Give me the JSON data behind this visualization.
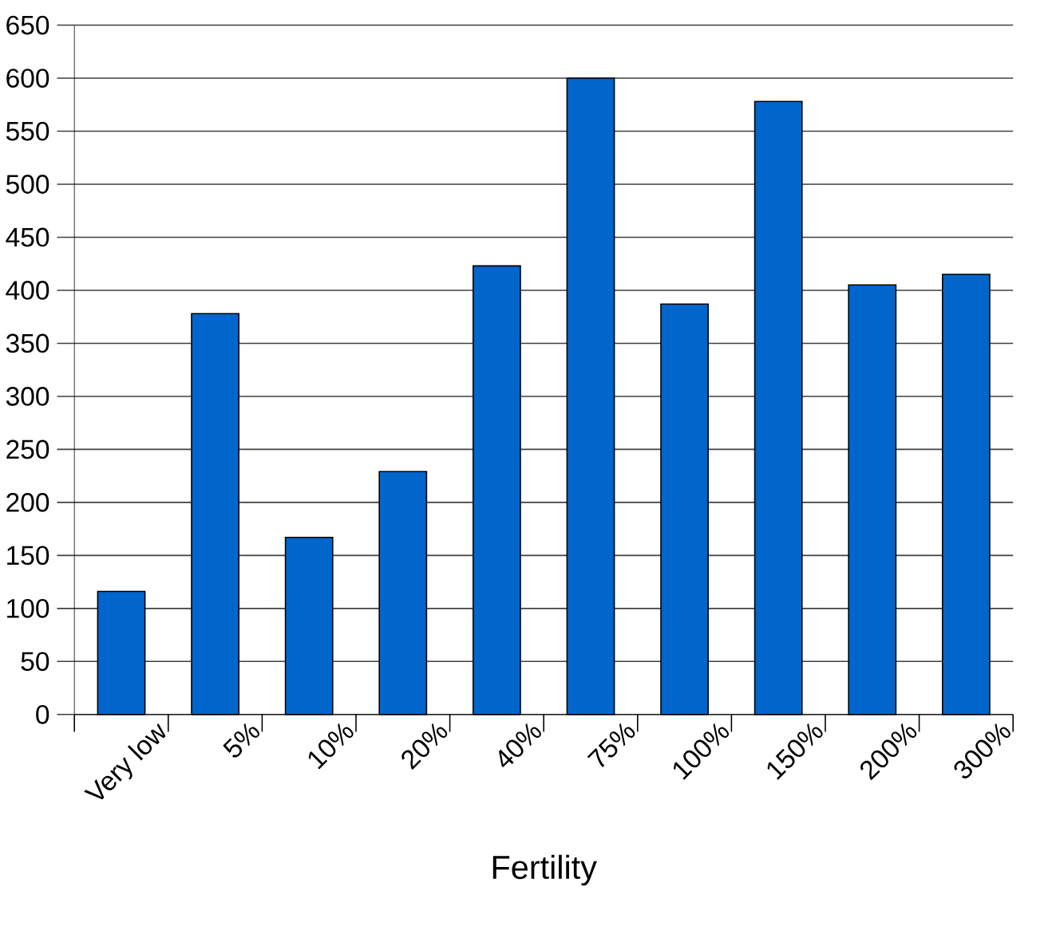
{
  "chart_data": {
    "type": "bar",
    "xlabel": "Fertility",
    "categories": [
      "Very low",
      "5%",
      "10%",
      "20%",
      "40%",
      "75%",
      "100%",
      "150%",
      "200%",
      "300%"
    ],
    "values": [
      116,
      378,
      167,
      229,
      423,
      600,
      387,
      578,
      405,
      415
    ],
    "color": "#0066cc",
    "ylim": [
      0,
      650
    ],
    "yticks": [
      0,
      50,
      100,
      150,
      200,
      250,
      300,
      350,
      400,
      450,
      500,
      550,
      600,
      650
    ],
    "grid": "y"
  }
}
